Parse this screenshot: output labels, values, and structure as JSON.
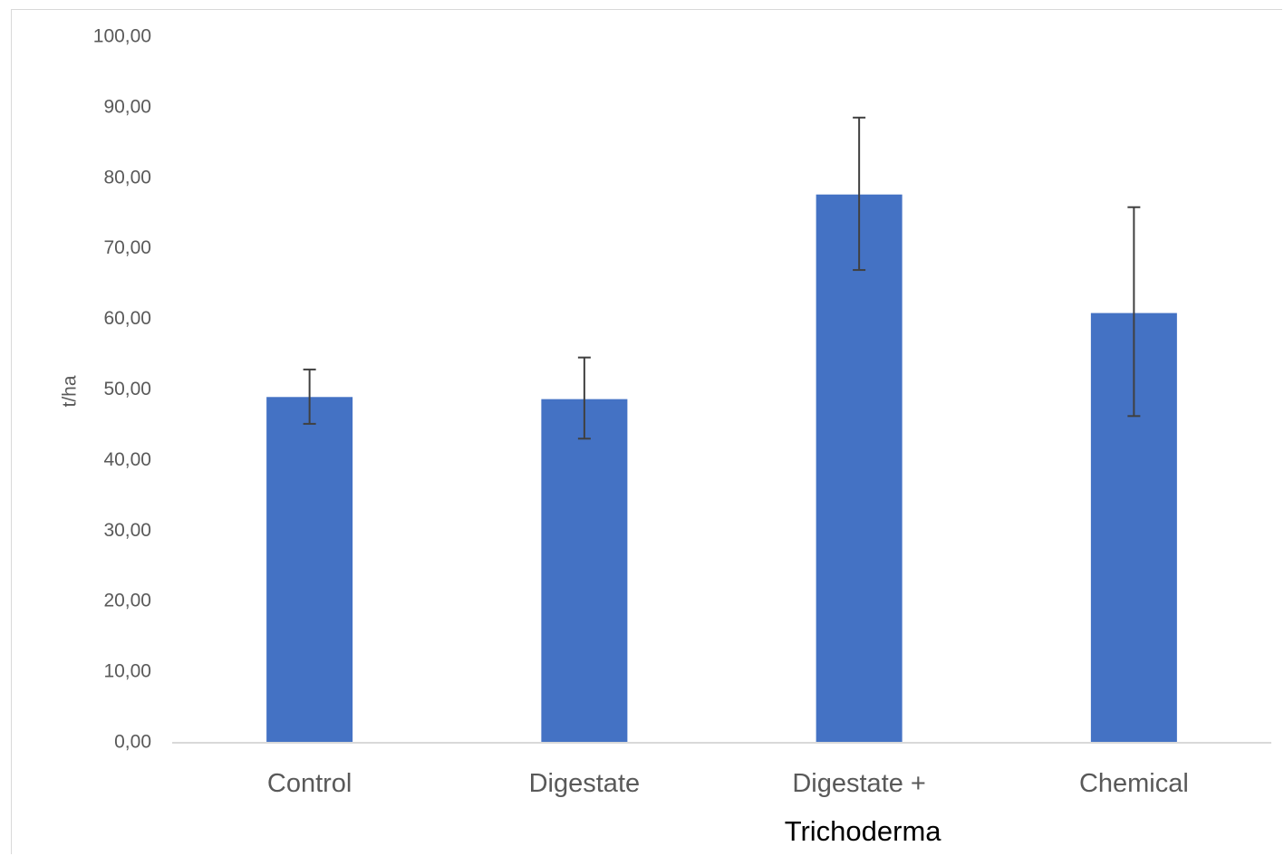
{
  "chart_data": {
    "type": "bar",
    "categories": [
      "Control",
      "Digestate",
      "Digestate +",
      "Chemical"
    ],
    "category_sublabels": [
      "",
      "",
      "Trichoderma",
      ""
    ],
    "values": [
      49.0,
      48.7,
      77.7,
      60.9
    ],
    "error_low": [
      45.2,
      43.1,
      67.0,
      46.3
    ],
    "error_high": [
      52.9,
      54.6,
      88.6,
      75.9
    ],
    "ylabel": "t/ha",
    "xlabel": "",
    "ylim": [
      0,
      100
    ],
    "yticks": [
      "0,00",
      "10,00",
      "20,00",
      "30,00",
      "40,00",
      "50,00",
      "60,00",
      "70,00",
      "80,00",
      "90,00",
      "100,00"
    ],
    "grid": false,
    "legend": "none",
    "bar_color": "#4472c4",
    "error_color": "#404040",
    "axis_color": "#d9d9d9"
  }
}
